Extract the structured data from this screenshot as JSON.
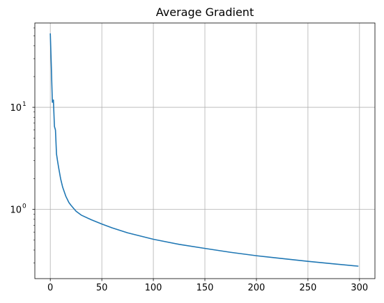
{
  "chart_data": {
    "type": "line",
    "title": "Average Gradient",
    "xlabel": "",
    "ylabel": "",
    "y_scale": "log",
    "grid": true,
    "xlim": [
      -15,
      315
    ],
    "ylim": [
      0.21,
      67
    ],
    "x_ticks": [
      0,
      50,
      100,
      150,
      200,
      250,
      300
    ],
    "x_tick_labels": [
      "0",
      "50",
      "100",
      "150",
      "200",
      "250",
      "300"
    ],
    "y_ticks": [
      {
        "value": 1,
        "base": "10",
        "exp": "0"
      },
      {
        "value": 10,
        "base": "10",
        "exp": "1"
      }
    ],
    "line_color": "#1f77b4",
    "series": [
      {
        "x": [
          0,
          1,
          2,
          3,
          4,
          5,
          6,
          7,
          8,
          10,
          12,
          15,
          18,
          20,
          25,
          30,
          40,
          50,
          60,
          75,
          100,
          125,
          150,
          175,
          200,
          225,
          250,
          275,
          299
        ],
        "y": [
          53,
          25,
          11.2,
          11.8,
          6.5,
          6.0,
          3.5,
          3.0,
          2.6,
          2.0,
          1.65,
          1.35,
          1.17,
          1.1,
          0.96,
          0.88,
          0.79,
          0.72,
          0.66,
          0.59,
          0.51,
          0.455,
          0.415,
          0.38,
          0.352,
          0.33,
          0.31,
          0.293,
          0.278
        ]
      }
    ]
  }
}
